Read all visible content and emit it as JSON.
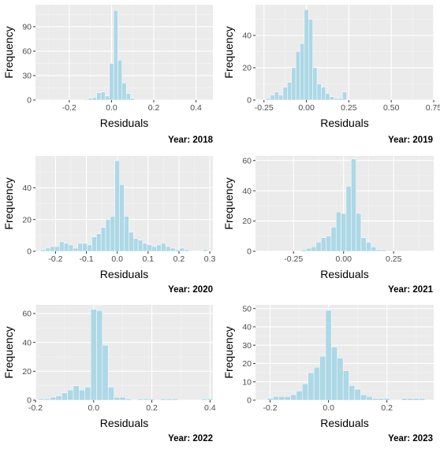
{
  "chart_data": [
    {
      "type": "bar",
      "title": "Year: 2018",
      "xlabel": "Residuals",
      "ylabel": "Frequency",
      "xlim": [
        -0.36,
        0.48
      ],
      "ylim": [
        0,
        117
      ],
      "xticks": [
        -0.2,
        0.0,
        0.2,
        0.4
      ],
      "xtick_labels": [
        "-0.2",
        "0.0",
        "0.2",
        "0.4"
      ],
      "yticks": [
        0,
        30,
        60,
        90
      ],
      "bin_width": 0.02,
      "bin_centers": [
        -0.12,
        -0.1,
        -0.08,
        -0.06,
        -0.04,
        -0.02,
        0.0,
        0.02,
        0.04,
        0.06,
        0.08,
        0.1
      ],
      "values": [
        1,
        2,
        3,
        9,
        10,
        5,
        45,
        110,
        49,
        21,
        8,
        2
      ]
    },
    {
      "type": "bar",
      "title": "Year: 2019",
      "xlabel": "Residuals",
      "ylabel": "Frequency",
      "xlim": [
        -0.3,
        0.75
      ],
      "ylim": [
        0,
        59
      ],
      "xticks": [
        -0.25,
        0.0,
        0.25,
        0.5,
        0.75
      ],
      "xtick_labels": [
        "-0.25",
        "0.00",
        "0.25",
        "0.50",
        "0.75"
      ],
      "yticks": [
        0,
        20,
        40
      ],
      "bin_width": 0.025,
      "bin_centers": [
        -0.225,
        -0.2,
        -0.175,
        -0.15,
        -0.125,
        -0.1,
        -0.075,
        -0.05,
        -0.025,
        0.0,
        0.025,
        0.05,
        0.075,
        0.1,
        0.125,
        0.15,
        0.175,
        0.2,
        0.225
      ],
      "values": [
        1,
        3,
        5,
        3,
        8,
        11,
        20,
        30,
        35,
        56,
        50,
        20,
        10,
        8,
        4,
        2,
        1,
        1,
        5
      ]
    },
    {
      "type": "bar",
      "title": "Year: 2020",
      "xlabel": "Residuals",
      "ylabel": "Frequency",
      "xlim": [
        -0.265,
        0.31
      ],
      "ylim": [
        0,
        60
      ],
      "xticks": [
        -0.2,
        -0.1,
        0.0,
        0.1,
        0.2,
        0.3
      ],
      "xtick_labels": [
        "-0.2",
        "-0.1",
        "0.0",
        "0.1",
        "0.2",
        "0.3"
      ],
      "yticks": [
        0,
        20,
        40
      ],
      "bin_width": 0.015,
      "bin_centers": [
        -0.24,
        -0.225,
        -0.21,
        -0.195,
        -0.18,
        -0.165,
        -0.15,
        -0.135,
        -0.12,
        -0.105,
        -0.09,
        -0.075,
        -0.06,
        -0.045,
        -0.03,
        -0.015,
        0.0,
        0.015,
        0.03,
        0.045,
        0.06,
        0.075,
        0.09,
        0.105,
        0.12,
        0.135,
        0.15,
        0.165,
        0.18,
        0.195,
        0.21,
        0.225,
        0.24,
        0.255,
        0.27,
        0.285
      ],
      "values": [
        1,
        2,
        3,
        3,
        6,
        5,
        4,
        2,
        5,
        5,
        4,
        9,
        11,
        15,
        20,
        22,
        57,
        42,
        22,
        12,
        8,
        7,
        5,
        4,
        3,
        4,
        5,
        3,
        2,
        1,
        2,
        1,
        0,
        0,
        0,
        1
      ]
    },
    {
      "type": "bar",
      "title": "Year: 2021",
      "xlabel": "Residuals",
      "ylabel": "Frequency",
      "xlim": [
        -0.44,
        0.45
      ],
      "ylim": [
        0,
        63
      ],
      "xticks": [
        -0.25,
        0.0,
        0.25
      ],
      "xtick_labels": [
        "-0.25",
        "0.00",
        "0.25"
      ],
      "yticks": [
        0,
        20,
        40,
        60
      ],
      "bin_width": 0.025,
      "bin_centers": [
        -0.2,
        -0.175,
        -0.15,
        -0.125,
        -0.1,
        -0.075,
        -0.05,
        -0.025,
        0.0,
        0.025,
        0.05,
        0.075,
        0.1,
        0.125,
        0.15,
        0.175,
        0.2
      ],
      "values": [
        1,
        2,
        3,
        6,
        9,
        10,
        16,
        26,
        25,
        43,
        61,
        25,
        9,
        6,
        3,
        1,
        1
      ]
    },
    {
      "type": "bar",
      "title": "Year: 2022",
      "xlabel": "Residuals",
      "ylabel": "Frequency",
      "xlim": [
        -0.2,
        0.41
      ],
      "ylim": [
        0,
        66
      ],
      "xticks": [
        -0.2,
        0.0,
        0.2,
        0.4
      ],
      "xtick_labels": [
        "-0.2",
        "0.0",
        "0.2",
        "0.4"
      ],
      "yticks": [
        0,
        20,
        40,
        60
      ],
      "bin_width": 0.02,
      "bin_centers": [
        -0.18,
        -0.16,
        -0.14,
        -0.12,
        -0.1,
        -0.08,
        -0.06,
        -0.04,
        -0.02,
        0.0,
        0.02,
        0.04,
        0.06,
        0.08,
        0.1,
        0.12,
        0.14,
        0.16,
        0.18,
        0.2,
        0.22,
        0.24,
        0.26,
        0.28,
        0.3,
        0.32,
        0.34,
        0.36,
        0.38,
        0.4
      ],
      "values": [
        1,
        1,
        2,
        3,
        5,
        7,
        10,
        7,
        9,
        63,
        62,
        38,
        9,
        2,
        2,
        1,
        0,
        1,
        1,
        1,
        0,
        1,
        1,
        1,
        0,
        0,
        0,
        0,
        1,
        1
      ]
    },
    {
      "type": "bar",
      "title": "Year: 2023",
      "xlabel": "Residuals",
      "ylabel": "Frequency",
      "xlim": [
        -0.25,
        0.36
      ],
      "ylim": [
        0,
        52
      ],
      "xticks": [
        -0.2,
        0.0,
        0.2
      ],
      "xtick_labels": [
        "-0.2",
        "0.0",
        "0.2"
      ],
      "yticks": [
        0,
        10,
        20,
        30,
        40,
        50
      ],
      "bin_width": 0.02,
      "bin_centers": [
        -0.2,
        -0.18,
        -0.16,
        -0.14,
        -0.12,
        -0.1,
        -0.08,
        -0.06,
        -0.04,
        -0.02,
        0.0,
        0.02,
        0.04,
        0.06,
        0.08,
        0.1,
        0.12,
        0.14,
        0.16,
        0.18,
        0.2,
        0.22,
        0.24,
        0.26,
        0.28,
        0.3,
        0.32
      ],
      "values": [
        1,
        2,
        2,
        2,
        3,
        5,
        9,
        15,
        18,
        24,
        49,
        29,
        23,
        16,
        8,
        6,
        3,
        2,
        1,
        1,
        1,
        0,
        0,
        1,
        1,
        1,
        1
      ]
    }
  ]
}
